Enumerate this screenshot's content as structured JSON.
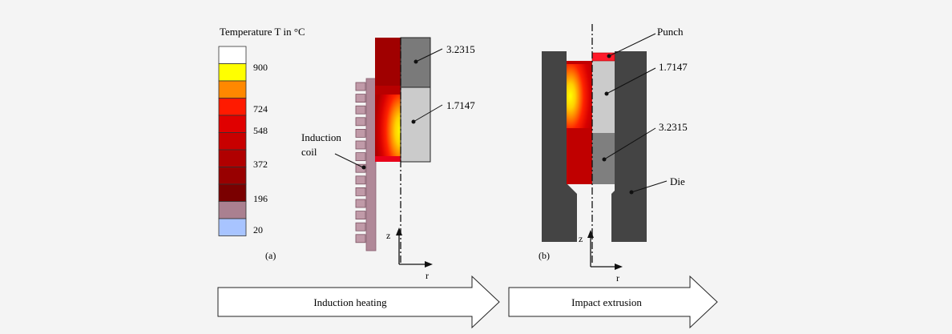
{
  "legend": {
    "title": "Temperature T in °C",
    "ticks": [
      "900",
      "724",
      "548",
      "372",
      "196",
      "20"
    ],
    "colors": [
      "#ffffff",
      "#ffff00",
      "#ff8800",
      "#ff1a00",
      "#e00000",
      "#c80000",
      "#b00000",
      "#980000",
      "#7a0000",
      "#aa8090",
      "#a8c4ff"
    ]
  },
  "panel_a": {
    "label": "(a)",
    "upper_material": "3.2315",
    "lower_material": "1.7147",
    "coil_label_line1": "Induction",
    "coil_label_line2": "coil",
    "axis_z": "z",
    "axis_r": "r"
  },
  "panel_b": {
    "label": "(b)",
    "punch_label": "Punch",
    "upper_material": "1.7147",
    "lower_material": "3.2315",
    "die_label": "Die",
    "axis_z": "z",
    "axis_r": "r"
  },
  "arrows": {
    "step1": "Induction heating",
    "step2": "Impact extrusion"
  }
}
